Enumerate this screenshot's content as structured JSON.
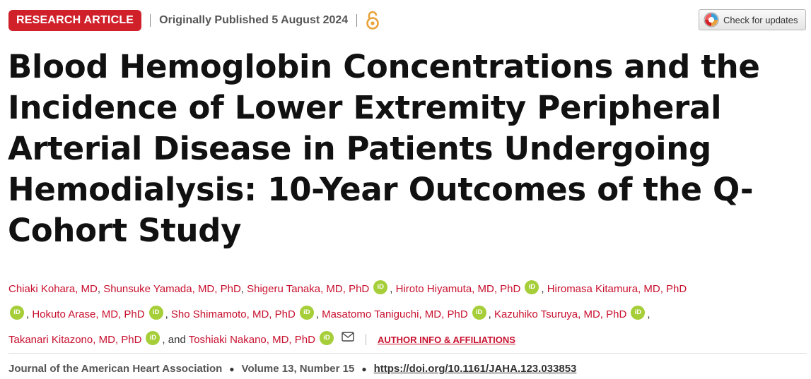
{
  "header": {
    "article_type": "RESEARCH ARTICLE",
    "published": "Originally Published 5 August 2024",
    "open_access_icon": "open-access-icon",
    "check_updates": "Check for updates"
  },
  "title": "Blood Hemoglobin Concentrations and the Incidence of Lower Extremity Peripheral Arterial Disease in Patients Undergoing Hemodialysis: 10-Year Outcomes of the Q-Cohort Study",
  "authors": [
    {
      "name": "Chiaki Kohara, MD",
      "orcid": false
    },
    {
      "name": "Shunsuke Yamada, MD, PhD",
      "orcid": false
    },
    {
      "name": "Shigeru Tanaka, MD, PhD",
      "orcid": true
    },
    {
      "name": "Hiroto Hiyamuta, MD, PhD",
      "orcid": true
    },
    {
      "name": "Hiromasa Kitamura, MD, PhD",
      "orcid": true
    },
    {
      "name": "Hokuto Arase, MD, PhD",
      "orcid": true
    },
    {
      "name": "Sho Shimamoto, MD, PhD",
      "orcid": true
    },
    {
      "name": "Masatomo Taniguchi, MD, PhD",
      "orcid": true
    },
    {
      "name": "Kazuhiko Tsuruya, MD, PhD",
      "orcid": true
    },
    {
      "name": "Takanari Kitazono, MD, PhD",
      "orcid": true
    },
    {
      "name": "Toshiaki Nakano, MD, PhD",
      "orcid": true
    }
  ],
  "orcid_label": "iD",
  "and_text": "and",
  "affiliations_link": "AUTHOR INFO & AFFILIATIONS",
  "journal": {
    "name": "Journal of the American Heart Association",
    "volume": "Volume 13, Number 15",
    "doi": "https://doi.org/10.1161/JAHA.123.033853"
  },
  "colors": {
    "brand_red": "#d0212b",
    "orcid_green": "#a6ce39"
  }
}
